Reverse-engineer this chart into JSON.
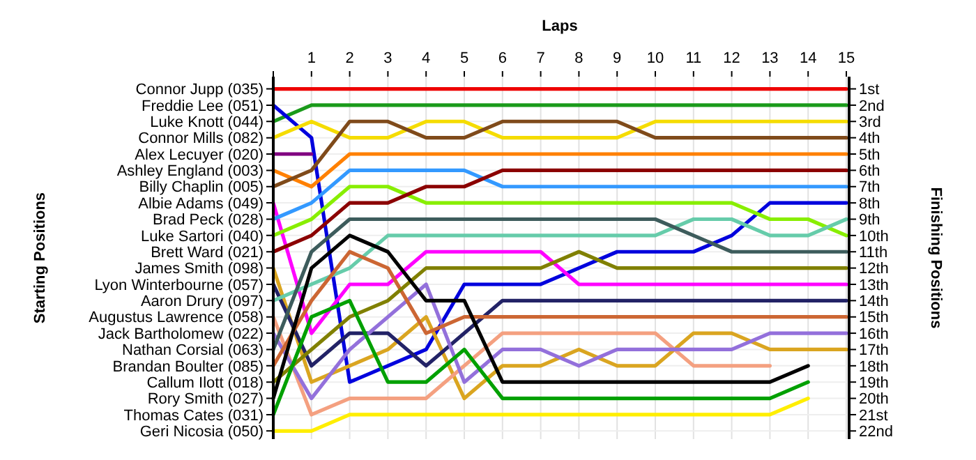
{
  "chart_data": {
    "type": "line",
    "xlabel": "Laps",
    "annotations": [
      "Starting Positions"
    ],
    "y2label": "Finishing Positions",
    "x": [
      0,
      1,
      2,
      3,
      4,
      5,
      6,
      7,
      8,
      9,
      10,
      11,
      12,
      13,
      14,
      15
    ],
    "xlim": [
      0,
      15
    ],
    "xticks": [
      {
        "value": 0,
        "label": null
      },
      1,
      2,
      3,
      4,
      5,
      6,
      7,
      8,
      9,
      10,
      11,
      12,
      13,
      14,
      15
    ],
    "y_categories": [
      "Connor Jupp (035)",
      "Freddie Lee (051)",
      "Luke Knott (044)",
      "Connor Mills (082)",
      "Alex Lecuyer (020)",
      "Ashley England (003)",
      "Billy Chaplin (005)",
      "Albie Adams (049)",
      "Brad Peck (028)",
      "Luke Sartori (040)",
      "Brett Ward (021)",
      "James Smith (098)",
      "Lyon Winterbourne (057)",
      "Aaron Drury (097)",
      "Augustus Lawrence (058)",
      "Jack Bartholomew (022)",
      "Nathan Corsial (063)",
      "Brandan Boulter (085)",
      "Callum Ilott (018)",
      "Rory Smith (027)",
      "Thomas Cates (031)",
      "Geri Nicosia (050)"
    ],
    "y2lim": [
      22.5,
      0.25
    ],
    "y2ticks": [
      {
        "value": 1,
        "label": "1st"
      },
      {
        "value": 2,
        "label": "2nd"
      },
      {
        "value": 3,
        "label": "3rd"
      },
      {
        "value": 4,
        "label": "4th"
      },
      {
        "value": 5,
        "label": "5th"
      },
      {
        "value": 6,
        "label": "6th"
      },
      {
        "value": 7,
        "label": "7th"
      },
      {
        "value": 8,
        "label": "8th"
      },
      {
        "value": 9,
        "label": "9th"
      },
      {
        "value": 10,
        "label": "10th"
      },
      {
        "value": 11,
        "label": "11th"
      },
      {
        "value": 12,
        "label": "12th"
      },
      {
        "value": 13,
        "label": "13th"
      },
      {
        "value": 14,
        "label": "14th"
      },
      {
        "value": 15,
        "label": "15th"
      },
      {
        "value": 16,
        "label": "16th"
      },
      {
        "value": 17,
        "label": "17th"
      },
      {
        "value": 18,
        "label": "18th"
      },
      {
        "value": 19,
        "label": "19th"
      },
      {
        "value": 20,
        "label": "20th"
      },
      {
        "value": 21,
        "label": "21st"
      },
      {
        "value": 22,
        "label": "22nd"
      }
    ],
    "grid": true,
    "series": [
      {
        "color": "#ee0000",
        "axis": "y2",
        "values": [
          1,
          1,
          1,
          1,
          1,
          1,
          1,
          1,
          1,
          1,
          1,
          1,
          1,
          1,
          1,
          1
        ]
      },
      {
        "color": "#1a9a1a",
        "axis": "y2",
        "values": [
          3,
          2,
          2,
          2,
          2,
          2,
          2,
          2,
          2,
          2,
          2,
          2,
          2,
          2,
          2,
          2
        ]
      },
      {
        "color": "#0000dd",
        "axis": "y2",
        "values": [
          2,
          4,
          19,
          18,
          17,
          13,
          13,
          13,
          12,
          11,
          11,
          11,
          10,
          8,
          8,
          8
        ]
      },
      {
        "color": "#f5dc00",
        "axis": "y2",
        "values": [
          4,
          3,
          4,
          4,
          3,
          3,
          4,
          4,
          4,
          4,
          3,
          3,
          3,
          3,
          3,
          3
        ]
      },
      {
        "color": "#800080",
        "axis": "y2",
        "values": [
          5,
          5,
          null,
          null,
          null,
          null,
          null,
          null,
          null,
          null,
          null,
          null,
          null,
          null,
          null,
          null
        ]
      },
      {
        "color": "#ff8000",
        "axis": "y2",
        "values": [
          6,
          7,
          5,
          5,
          5,
          5,
          5,
          5,
          5,
          5,
          5,
          5,
          5,
          5,
          5,
          5
        ]
      },
      {
        "color": "#7f4a1a",
        "axis": "y2",
        "values": [
          7,
          6,
          3,
          3,
          4,
          4,
          3,
          3,
          3,
          3,
          4,
          4,
          4,
          4,
          4,
          4
        ]
      },
      {
        "color": "#ff00ff",
        "axis": "y2",
        "values": [
          8,
          16,
          13,
          13,
          11,
          11,
          11,
          11,
          13,
          13,
          13,
          13,
          13,
          13,
          13,
          13
        ]
      },
      {
        "color": "#3399ff",
        "axis": "y2",
        "values": [
          9,
          8,
          6,
          6,
          6,
          6,
          7,
          7,
          7,
          7,
          7,
          7,
          7,
          7,
          7,
          7
        ]
      },
      {
        "color": "#88ee00",
        "axis": "y2",
        "values": [
          10,
          9,
          7,
          7,
          8,
          8,
          8,
          8,
          8,
          8,
          8,
          8,
          8,
          9,
          9,
          10
        ]
      },
      {
        "color": "#8b0000",
        "axis": "y2",
        "values": [
          11,
          10,
          8,
          8,
          7,
          7,
          6,
          6,
          6,
          6,
          6,
          6,
          6,
          6,
          6,
          6
        ]
      },
      {
        "color": "#daa520",
        "axis": "y2",
        "values": [
          12,
          19,
          18,
          17,
          15,
          20,
          18,
          18,
          17,
          18,
          18,
          16,
          16,
          17,
          17,
          17
        ]
      },
      {
        "color": "#222266",
        "axis": "y2",
        "values": [
          13,
          18,
          16,
          16,
          18,
          16,
          14,
          14,
          14,
          14,
          14,
          14,
          14,
          14,
          14,
          14
        ]
      },
      {
        "color": "#66ccaa",
        "axis": "y2",
        "values": [
          14,
          13,
          12,
          10,
          10,
          10,
          10,
          10,
          10,
          10,
          10,
          9,
          9,
          10,
          10,
          9
        ]
      },
      {
        "color": "#f4a080",
        "axis": "y2",
        "values": [
          15,
          21,
          20,
          20,
          20,
          18,
          16,
          16,
          16,
          16,
          16,
          18,
          18,
          18,
          null,
          null
        ]
      },
      {
        "color": "#9370db",
        "axis": "y2",
        "values": [
          16,
          20,
          17,
          15,
          13,
          19,
          17,
          17,
          18,
          17,
          17,
          17,
          17,
          16,
          16,
          16
        ]
      },
      {
        "color": "#3d5c5c",
        "axis": "y2",
        "values": [
          17,
          11,
          9,
          9,
          9,
          9,
          9,
          9,
          9,
          9,
          9,
          10,
          11,
          11,
          11,
          11
        ]
      },
      {
        "color": "#cc6633",
        "axis": "y2",
        "values": [
          18,
          14,
          11,
          12,
          16,
          15,
          15,
          15,
          15,
          15,
          15,
          15,
          15,
          15,
          15,
          15
        ]
      },
      {
        "color": "#808000",
        "axis": "y2",
        "values": [
          19,
          17,
          15,
          14,
          12,
          12,
          12,
          12,
          11,
          12,
          12,
          12,
          12,
          12,
          12,
          12
        ]
      },
      {
        "color": "#000000",
        "axis": "y2",
        "values": [
          20,
          12,
          10,
          11,
          14,
          14,
          19,
          19,
          19,
          19,
          19,
          19,
          19,
          19,
          18,
          null
        ]
      },
      {
        "color": "#00a000",
        "axis": "y2",
        "values": [
          21,
          15,
          14,
          19,
          19,
          17,
          20,
          20,
          20,
          20,
          20,
          20,
          20,
          20,
          19,
          null
        ]
      },
      {
        "color": "#ffee00",
        "axis": "y2",
        "values": [
          22,
          22,
          21,
          21,
          21,
          21,
          21,
          21,
          21,
          21,
          21,
          21,
          21,
          21,
          20,
          null
        ]
      }
    ]
  }
}
